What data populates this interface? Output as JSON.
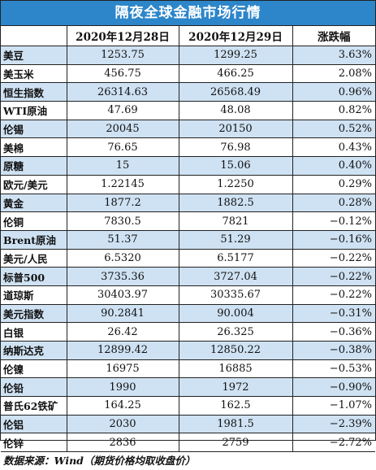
{
  "title": "隔夜全球金融市场行情",
  "headers": [
    "",
    "2020年12月28日",
    "2020年12月29日",
    "涨跌幅"
  ],
  "rows": [
    {
      "name": "美豆",
      "d1": "1253.75",
      "d2": "1299.25",
      "chg": "3.63%"
    },
    {
      "name": "美玉米",
      "d1": "456.75",
      "d2": "466.25",
      "chg": "2.08%"
    },
    {
      "name": "恒生指数",
      "d1": "26314.63",
      "d2": "26568.49",
      "chg": "0.96%"
    },
    {
      "name": "WTI原油",
      "d1": "47.69",
      "d2": "48.08",
      "chg": "0.82%"
    },
    {
      "name": "伦锡",
      "d1": "20045",
      "d2": "20150",
      "chg": "0.52%"
    },
    {
      "name": "美棉",
      "d1": "76.65",
      "d2": "76.98",
      "chg": "0.43%"
    },
    {
      "name": "原糖",
      "d1": "15",
      "d2": "15.06",
      "chg": "0.40%"
    },
    {
      "name": "欧元/美元",
      "d1": "1.22145",
      "d2": "1.2250",
      "chg": "0.29%"
    },
    {
      "name": "黄金",
      "d1": "1877.2",
      "d2": "1882.5",
      "chg": "0.28%"
    },
    {
      "name": "伦铜",
      "d1": "7830.5",
      "d2": "7821",
      "chg": "−0.12%"
    },
    {
      "name": "Brent原油",
      "d1": "51.37",
      "d2": "51.29",
      "chg": "−0.16%"
    },
    {
      "name": "美元/人民",
      "d1": "6.5320",
      "d2": "6.5177",
      "chg": "−0.22%"
    },
    {
      "name": "标普500",
      "d1": "3735.36",
      "d2": "3727.04",
      "chg": "−0.22%"
    },
    {
      "name": "道琼斯",
      "d1": "30403.97",
      "d2": "30335.67",
      "chg": "−0.22%"
    },
    {
      "name": "美元指数",
      "d1": "90.2841",
      "d2": "90.004",
      "chg": "−0.31%"
    },
    {
      "name": "白银",
      "d1": "26.42",
      "d2": "26.325",
      "chg": "−0.36%"
    },
    {
      "name": "纳斯达克",
      "d1": "12899.42",
      "d2": "12850.22",
      "chg": "−0.38%"
    },
    {
      "name": "伦镍",
      "d1": "16975",
      "d2": "16885",
      "chg": "−0.53%"
    },
    {
      "name": "伦铅",
      "d1": "1990",
      "d2": "1972",
      "chg": "−0.90%"
    },
    {
      "name": "普氏62铁矿",
      "d1": "164.25",
      "d2": "162.5",
      "chg": "−1.07%"
    },
    {
      "name": "伦铝",
      "d1": "2030",
      "d2": "1981.5",
      "chg": "−2.39%"
    },
    {
      "name": "伦锌",
      "d1": "2836",
      "d2": "2759",
      "chg": "−2.72%"
    }
  ],
  "source": "数据来源：Wind（期货价格均取收盘价）",
  "colors": {
    "title_bg": "#2d86c9",
    "band_bg": "#cfe2f3",
    "border": "#222222"
  }
}
